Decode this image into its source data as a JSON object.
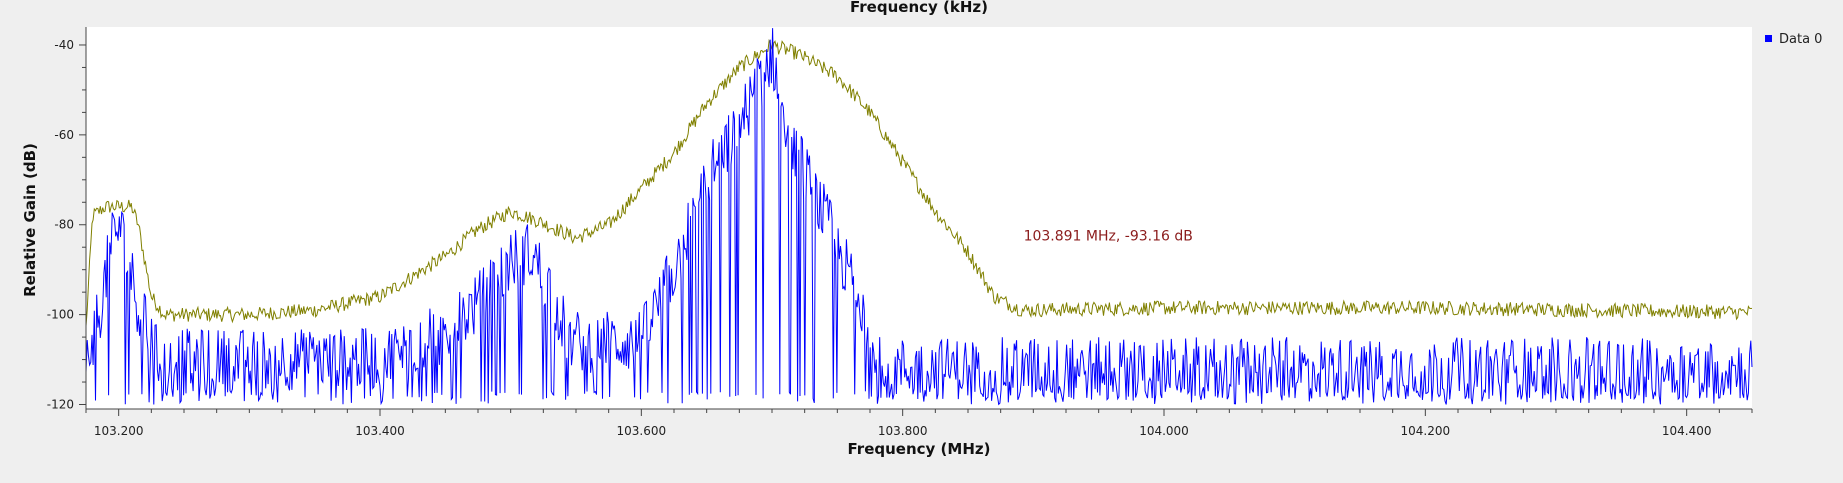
{
  "chart_data": {
    "type": "line",
    "title": "Frequency (kHz)",
    "xlabel": "Frequency (MHz)",
    "ylabel": "Relative Gain (dB)",
    "xlim": [
      103.175,
      104.45
    ],
    "ylim": [
      -121,
      -36
    ],
    "x_ticks": [
      103.2,
      103.4,
      103.6,
      103.8,
      104.0,
      104.2,
      104.4
    ],
    "x_tick_labels": [
      "103.200",
      "103.400",
      "103.600",
      "103.800",
      "104.000",
      "104.200",
      "104.400"
    ],
    "y_ticks": [
      -40,
      -60,
      -80,
      -100,
      -120
    ],
    "y_tick_labels": [
      "-40",
      "-60",
      "-80",
      "-100",
      "-120"
    ],
    "grid": false,
    "legend_position": "top-right",
    "legend": [
      {
        "label": "Data 0",
        "color": "#0000ff"
      }
    ],
    "series": [
      {
        "role": "max-hold",
        "color": "#808000",
        "envelope": [
          [
            103.175,
            -103
          ],
          [
            103.18,
            -78
          ],
          [
            103.19,
            -76
          ],
          [
            103.21,
            -76
          ],
          [
            103.215,
            -80
          ],
          [
            103.225,
            -96
          ],
          [
            103.235,
            -100
          ],
          [
            103.3,
            -100
          ],
          [
            103.35,
            -99
          ],
          [
            103.4,
            -96
          ],
          [
            103.45,
            -87
          ],
          [
            103.475,
            -81
          ],
          [
            103.5,
            -77
          ],
          [
            103.52,
            -79
          ],
          [
            103.55,
            -83
          ],
          [
            103.575,
            -80
          ],
          [
            103.6,
            -72
          ],
          [
            103.625,
            -64
          ],
          [
            103.65,
            -53
          ],
          [
            103.675,
            -45
          ],
          [
            103.7,
            -40
          ],
          [
            103.72,
            -42
          ],
          [
            103.75,
            -47
          ],
          [
            103.775,
            -55
          ],
          [
            103.8,
            -66
          ],
          [
            103.825,
            -77
          ],
          [
            103.85,
            -86
          ],
          [
            103.87,
            -96
          ],
          [
            103.891,
            -99
          ],
          [
            104.0,
            -98.5
          ],
          [
            104.2,
            -98.5
          ],
          [
            104.45,
            -99.5
          ]
        ],
        "noise_db": 1.6
      },
      {
        "role": "live",
        "name": "Data 0",
        "color": "#0000ff",
        "envelope": [
          [
            103.175,
            -110
          ],
          [
            103.185,
            -100
          ],
          [
            103.195,
            -83
          ],
          [
            103.2,
            -80
          ],
          [
            103.205,
            -85
          ],
          [
            103.215,
            -98
          ],
          [
            103.23,
            -110
          ],
          [
            103.4,
            -110
          ],
          [
            103.45,
            -104
          ],
          [
            103.48,
            -96
          ],
          [
            103.5,
            -88
          ],
          [
            103.515,
            -86
          ],
          [
            103.53,
            -94
          ],
          [
            103.545,
            -106
          ],
          [
            103.6,
            -106
          ],
          [
            103.625,
            -90
          ],
          [
            103.65,
            -70
          ],
          [
            103.675,
            -58
          ],
          [
            103.7,
            -42
          ],
          [
            103.715,
            -62
          ],
          [
            103.74,
            -78
          ],
          [
            103.76,
            -92
          ],
          [
            103.775,
            -104
          ],
          [
            103.79,
            -112
          ],
          [
            104.45,
            -112
          ]
        ],
        "noise_db": 7,
        "floor": -120
      }
    ],
    "marker": {
      "x": 103.891,
      "y": -93.16,
      "label": "103.891 MHz, -93.16 dB",
      "color": "#8b1c1c"
    }
  }
}
